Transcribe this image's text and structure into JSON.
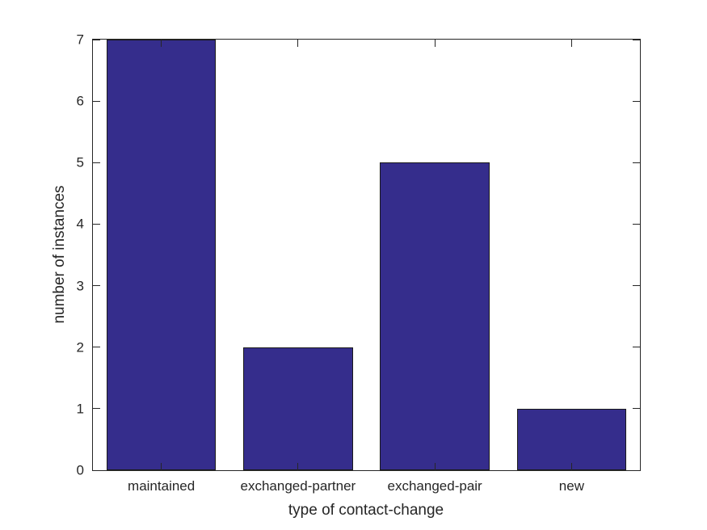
{
  "figure": {
    "background": "#ffffff"
  },
  "chart_data": {
    "type": "bar",
    "title": "",
    "categories": [
      "maintained",
      "exchanged-partner",
      "exchanged-pair",
      "new"
    ],
    "values": [
      7,
      2,
      5,
      1
    ],
    "xlabel": "type of contact-change",
    "ylabel": "number of instances",
    "ylim": [
      0,
      7
    ],
    "yticks": [
      0,
      1,
      2,
      3,
      4,
      5,
      6,
      7
    ],
    "bar_width_fraction": 0.8,
    "bar_color": "#352D8C",
    "bar_edge_color": "#1a1a1a",
    "axis_color": "#262626",
    "text_color": "#262626",
    "grid": false,
    "legend": "none",
    "tick_direction": "in"
  }
}
